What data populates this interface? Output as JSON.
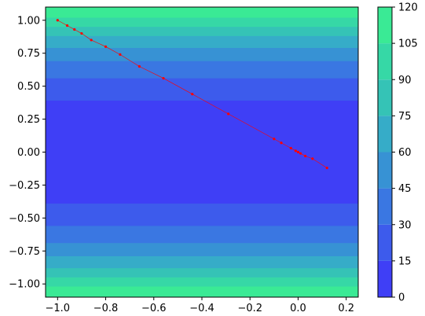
{
  "chart_data": {
    "type": "contour",
    "xlim": [
      -1.05,
      0.25
    ],
    "ylim": [
      -1.1,
      1.1
    ],
    "x_ticks": [
      -1.0,
      -0.8,
      -0.6,
      -0.4,
      -0.2,
      0.0,
      0.2
    ],
    "x_tick_labels": [
      "−1.0",
      "−0.8",
      "−0.6",
      "−0.4",
      "−0.2",
      "0.0",
      "0.2"
    ],
    "y_ticks": [
      -1.0,
      -0.75,
      -0.5,
      -0.25,
      0.0,
      0.25,
      0.5,
      0.75,
      1.0
    ],
    "y_tick_labels": [
      "−1.00",
      "−0.75",
      "−0.50",
      "−0.25",
      "0.00",
      "0.25",
      "0.50",
      "0.75",
      "1.00"
    ],
    "contour_levels": [
      0,
      15,
      30,
      45,
      60,
      75,
      90,
      105,
      120
    ],
    "contour_band_colors": [
      "#3f3ff6",
      "#3d5bec",
      "#3a77e2",
      "#3792d4",
      "#36acc8",
      "#35c3b6",
      "#36d8a6",
      "#3aea95"
    ],
    "contour_band_boundaries_y": [
      0.39,
      0.56,
      0.69,
      0.79,
      0.88,
      0.95,
      1.02
    ],
    "colorbar": {
      "ticks": [
        0,
        15,
        30,
        45,
        60,
        75,
        90,
        105,
        120
      ],
      "tick_labels": [
        "0",
        "15",
        "30",
        "45",
        "60",
        "75",
        "90",
        "105",
        "120"
      ]
    },
    "path": {
      "color": "#ff0000",
      "points": [
        [
          -1.0,
          1.0
        ],
        [
          -0.96,
          0.96
        ],
        [
          -0.93,
          0.93
        ],
        [
          -0.9,
          0.9
        ],
        [
          -0.86,
          0.85
        ],
        [
          -0.8,
          0.8
        ],
        [
          -0.74,
          0.74
        ],
        [
          -0.66,
          0.65
        ],
        [
          -0.56,
          0.56
        ],
        [
          -0.44,
          0.44
        ],
        [
          -0.29,
          0.29
        ],
        [
          -0.1,
          0.1
        ],
        [
          -0.07,
          0.07
        ],
        [
          -0.03,
          0.03
        ],
        [
          -0.01,
          0.01
        ],
        [
          0.0,
          0.0
        ],
        [
          0.01,
          -0.01
        ],
        [
          0.03,
          -0.03
        ],
        [
          0.06,
          -0.05
        ],
        [
          0.12,
          -0.12
        ]
      ]
    }
  }
}
